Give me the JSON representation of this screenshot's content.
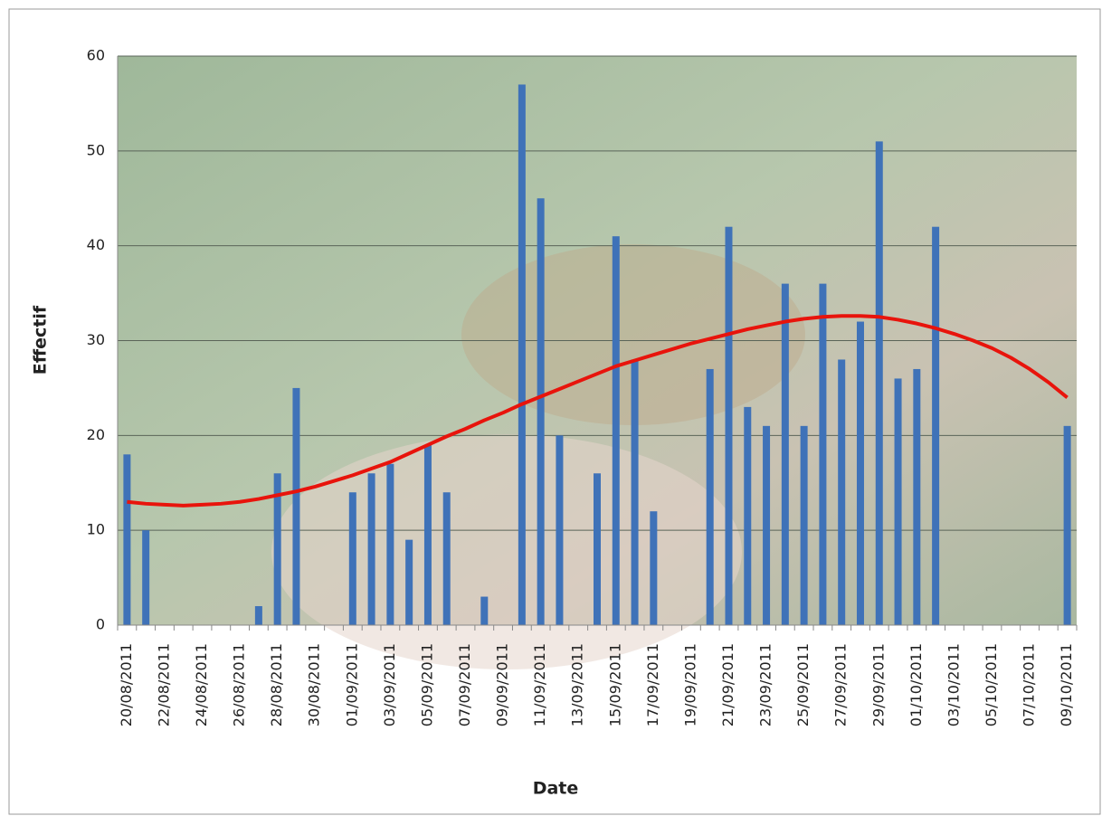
{
  "chart_data": {
    "type": "bar",
    "xlabel": "Date",
    "ylabel": "Effectif",
    "categories": [
      "20/08/2011",
      null,
      "22/08/2011",
      null,
      "24/08/2011",
      null,
      "26/08/2011",
      null,
      "28/08/2011",
      null,
      "30/08/2011",
      null,
      "01/09/2011",
      null,
      "03/09/2011",
      null,
      "05/09/2011",
      null,
      "07/09/2011",
      null,
      "09/09/2011",
      null,
      "11/09/2011",
      null,
      "13/09/2011",
      null,
      "15/09/2011",
      null,
      "17/09/2011",
      null,
      "19/09/2011",
      null,
      "21/09/2011",
      null,
      "23/09/2011",
      null,
      "25/09/2011",
      null,
      "27/09/2011",
      null,
      "29/09/2011",
      null,
      "01/10/2011",
      null,
      "03/10/2011",
      null,
      "05/10/2011",
      null,
      "07/10/2011",
      null,
      "09/10/2011"
    ],
    "series": [
      {
        "type": "bar",
        "color": "#3f72b8",
        "values": [
          18,
          10,
          0,
          0,
          0,
          0,
          0,
          2,
          16,
          25,
          0,
          0,
          14,
          16,
          17,
          9,
          19,
          14,
          0,
          3,
          0,
          57,
          45,
          20,
          0,
          16,
          41,
          28,
          12,
          0,
          0,
          27,
          42,
          23,
          21,
          36,
          21,
          36,
          28,
          32,
          51,
          26,
          27,
          42,
          0,
          0,
          0,
          0,
          0,
          0,
          21
        ]
      },
      {
        "type": "line",
        "color": "#e8140c",
        "values": [
          13.0,
          12.8,
          12.7,
          12.6,
          12.7,
          12.8,
          13.0,
          13.3,
          13.7,
          14.1,
          14.6,
          15.2,
          15.8,
          16.5,
          17.2,
          18.1,
          19.0,
          19.9,
          20.7,
          21.6,
          22.4,
          23.3,
          24.1,
          24.9,
          25.7,
          26.5,
          27.3,
          27.9,
          28.5,
          29.1,
          29.7,
          30.2,
          30.7,
          31.2,
          31.6,
          32.0,
          32.3,
          32.5,
          32.6,
          32.6,
          32.5,
          32.2,
          31.8,
          31.3,
          30.7,
          30.0,
          29.2,
          28.2,
          27.0,
          25.6,
          24.0
        ]
      }
    ],
    "ylim": [
      0,
      60
    ],
    "yticks": [
      0,
      10,
      20,
      30,
      40,
      50,
      60
    ],
    "grid": true
  }
}
